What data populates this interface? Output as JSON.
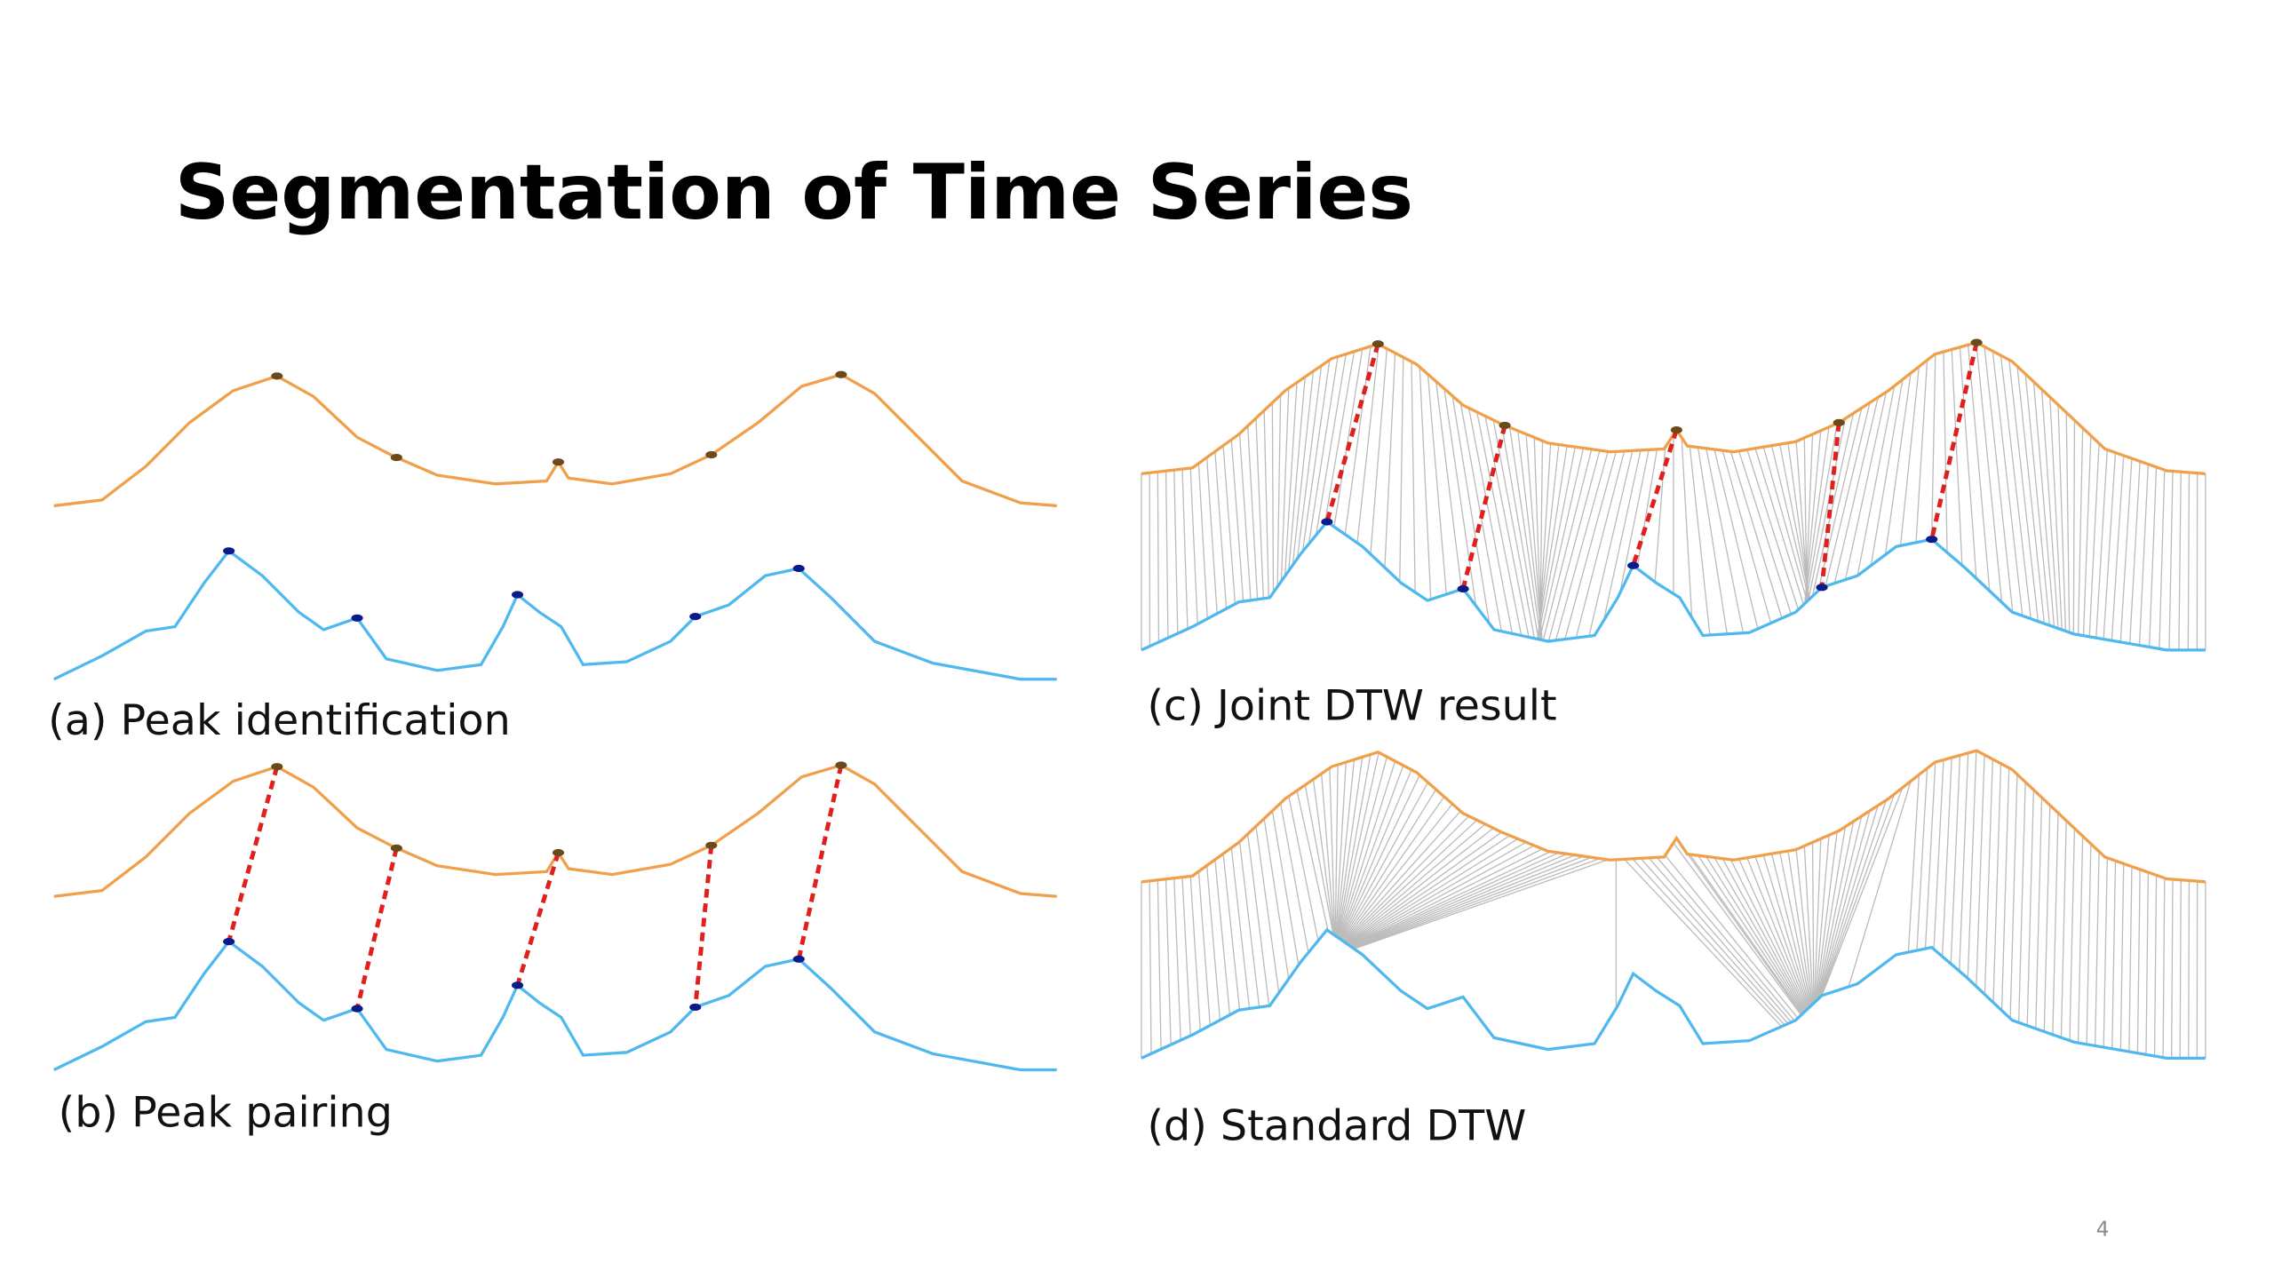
{
  "title": "Segmentation of Time Series",
  "panels": [
    {
      "caption": "(a) Peak identification"
    },
    {
      "caption": "(b) Peak pairing"
    },
    {
      "caption": "(c) Joint DTW result"
    },
    {
      "caption": "(d) Standard DTW"
    }
  ],
  "page_number": "4"
}
